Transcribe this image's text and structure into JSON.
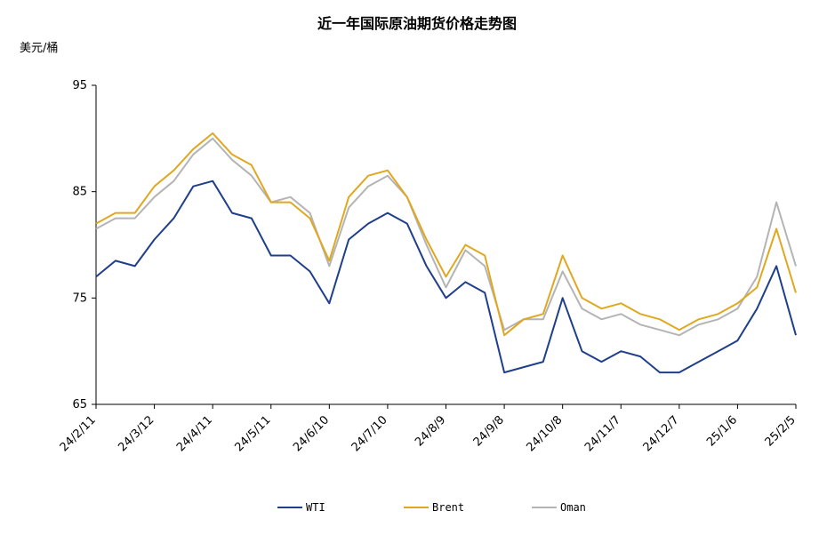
{
  "chart_data": {
    "type": "line",
    "title": "近一年国际原油期货价格走势图",
    "ylabel": "美元/桶",
    "xlabel": "",
    "ylim": [
      65,
      95
    ],
    "yticks": [
      65,
      75,
      85,
      95
    ],
    "grid": false,
    "legend_position": "bottom",
    "x_tick_labels": [
      "24/2/11",
      "24/3/12",
      "24/4/11",
      "24/5/11",
      "24/6/10",
      "24/7/10",
      "24/8/9",
      "24/9/8",
      "24/10/8",
      "24/11/7",
      "24/12/7",
      "25/1/6",
      "25/2/5"
    ],
    "x": [
      "24/2/11",
      "24/2/21",
      "24/3/1",
      "24/3/12",
      "24/3/22",
      "24/4/1",
      "24/4/11",
      "24/4/21",
      "24/5/1",
      "24/5/11",
      "24/5/21",
      "24/5/31",
      "24/6/10",
      "24/6/20",
      "24/6/30",
      "24/7/10",
      "24/7/20",
      "24/7/30",
      "24/8/9",
      "24/8/19",
      "24/8/29",
      "24/9/8",
      "24/9/18",
      "24/9/28",
      "24/10/8",
      "24/10/18",
      "24/10/28",
      "24/11/7",
      "24/11/17",
      "24/11/27",
      "24/12/7",
      "24/12/17",
      "24/12/27",
      "25/1/6",
      "25/1/16",
      "25/1/26",
      "25/2/5"
    ],
    "series": [
      {
        "name": "WTI",
        "color": "#1f3f8a",
        "values": [
          77.0,
          78.5,
          78.0,
          80.5,
          82.5,
          85.5,
          86.0,
          83.0,
          82.5,
          79.0,
          79.0,
          77.5,
          74.5,
          80.5,
          82.0,
          83.0,
          82.0,
          78.0,
          75.0,
          76.5,
          75.5,
          68.0,
          68.5,
          69.0,
          75.0,
          70.0,
          69.0,
          70.0,
          69.5,
          68.0,
          68.0,
          69.0,
          70.0,
          71.0,
          74.0,
          78.0,
          71.5
        ]
      },
      {
        "name": "Brent",
        "color": "#e0a820",
        "values": [
          82.0,
          83.0,
          83.0,
          85.5,
          87.0,
          89.0,
          90.5,
          88.5,
          87.5,
          84.0,
          84.0,
          82.5,
          78.5,
          84.5,
          86.5,
          87.0,
          84.5,
          80.5,
          77.0,
          80.0,
          79.0,
          71.5,
          73.0,
          73.5,
          79.0,
          75.0,
          74.0,
          74.5,
          73.5,
          73.0,
          72.0,
          73.0,
          73.5,
          74.5,
          76.0,
          81.5,
          75.5
        ]
      },
      {
        "name": "Oman",
        "color": "#b4b4b4",
        "values": [
          81.5,
          82.5,
          82.5,
          84.5,
          86.0,
          88.5,
          90.0,
          88.0,
          86.5,
          84.0,
          84.5,
          83.0,
          78.0,
          83.5,
          85.5,
          86.5,
          84.5,
          80.0,
          76.0,
          79.5,
          78.0,
          72.0,
          73.0,
          73.0,
          77.5,
          74.0,
          73.0,
          73.5,
          72.5,
          72.0,
          71.5,
          72.5,
          73.0,
          74.0,
          77.0,
          84.0,
          78.0
        ]
      }
    ]
  }
}
